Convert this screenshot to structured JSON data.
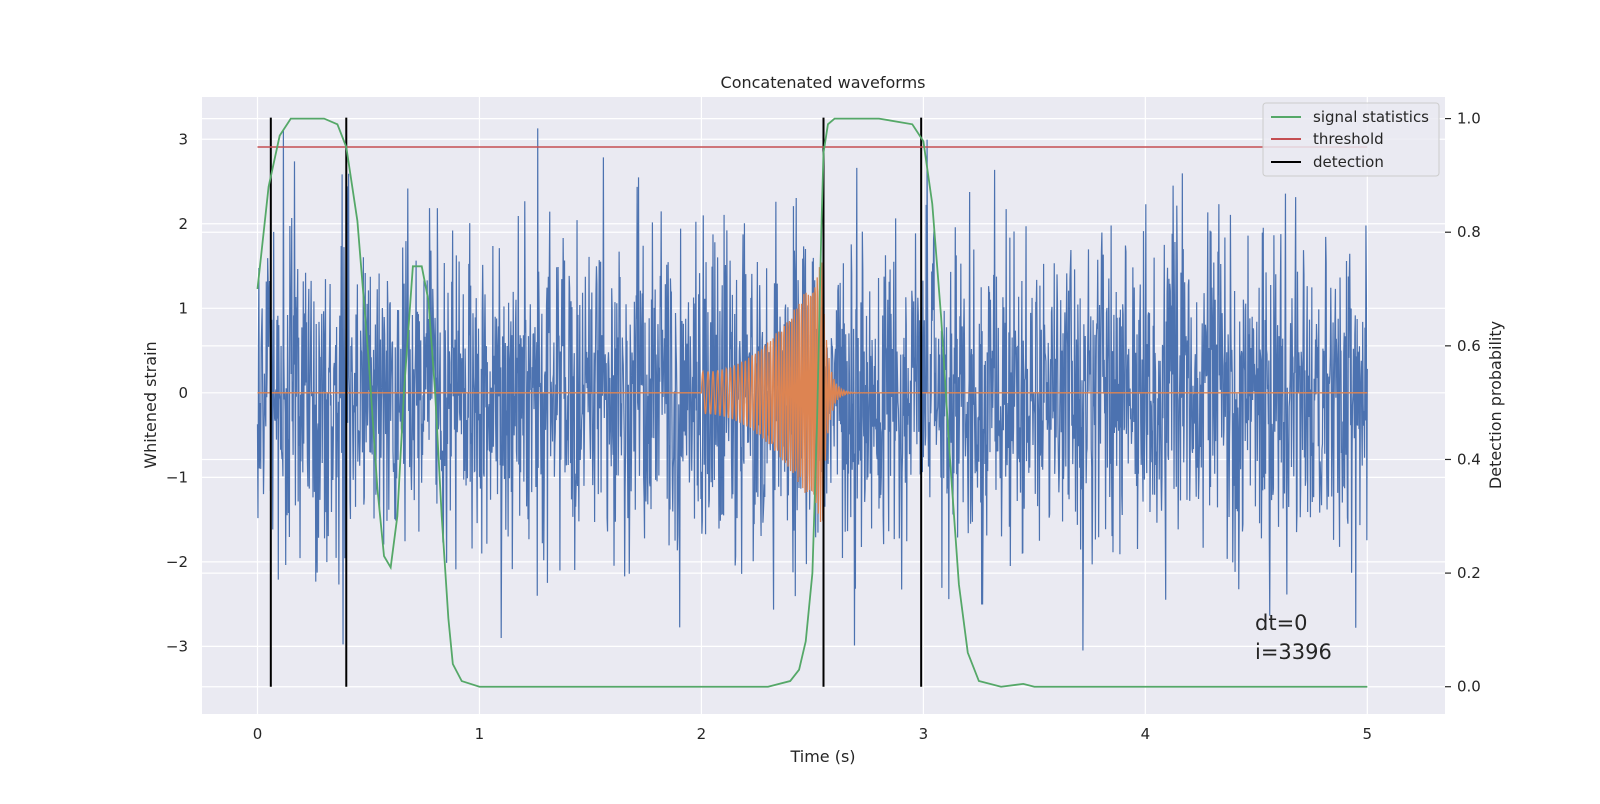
{
  "chart_data": {
    "type": "line",
    "title": "Concatenated waveforms",
    "xlabel": "Time (s)",
    "ylabel": "Whitened strain",
    "y2label": "Detection probability",
    "xlim": [
      -0.25,
      5.35
    ],
    "ylim": [
      -3.8,
      3.5
    ],
    "y2lim": [
      -0.048,
      1.038
    ],
    "xticks": [
      0,
      1,
      2,
      3,
      4,
      5
    ],
    "yticks": [
      -3,
      -2,
      -1,
      0,
      1,
      2,
      3
    ],
    "y2ticks": [
      0.0,
      0.2,
      0.4,
      0.6,
      0.8,
      1.0
    ],
    "grid": true,
    "legend_placement": "top-right",
    "annotations": [
      "dt=0",
      "i=3396"
    ],
    "series": [
      {
        "name": "signal statistics",
        "axis": "right",
        "color": "#55a868",
        "x": [
          0.0,
          0.05,
          0.1,
          0.15,
          0.2,
          0.3,
          0.36,
          0.4,
          0.45,
          0.5,
          0.54,
          0.57,
          0.6,
          0.63,
          0.66,
          0.7,
          0.74,
          0.77,
          0.8,
          0.83,
          0.86,
          0.88,
          0.92,
          1.0,
          1.5,
          2.0,
          2.3,
          2.4,
          2.44,
          2.47,
          2.5,
          2.52,
          2.54,
          2.55,
          2.57,
          2.6,
          2.65,
          2.8,
          2.95,
          3.0,
          3.04,
          3.08,
          3.12,
          3.16,
          3.2,
          3.25,
          3.35,
          3.45,
          3.5,
          3.6,
          4.0,
          4.5,
          5.0
        ],
        "values": [
          0.7,
          0.88,
          0.97,
          1.0,
          1.0,
          1.0,
          0.99,
          0.95,
          0.82,
          0.58,
          0.35,
          0.23,
          0.21,
          0.3,
          0.52,
          0.74,
          0.74,
          0.68,
          0.52,
          0.3,
          0.12,
          0.04,
          0.01,
          0.0,
          0.0,
          0.0,
          0.0,
          0.01,
          0.03,
          0.08,
          0.2,
          0.45,
          0.8,
          0.94,
          0.99,
          1.0,
          1.0,
          1.0,
          0.99,
          0.96,
          0.85,
          0.65,
          0.4,
          0.18,
          0.06,
          0.01,
          0.0,
          0.005,
          0.0,
          0.0,
          0.0,
          0.0,
          0.0
        ]
      },
      {
        "name": "threshold",
        "axis": "right",
        "color": "#c44e52",
        "x": [
          0,
          5
        ],
        "values": [
          0.95,
          0.95
        ]
      }
    ],
    "detections": {
      "name": "detection",
      "color": "#000000",
      "x": [
        0.06,
        0.4,
        2.55,
        2.99
      ]
    },
    "noise": {
      "color": "#4c72b0",
      "x_range": [
        0,
        5
      ],
      "amplitude": 1.0
    },
    "injected_signal": {
      "color": "#dd8452",
      "x_range": [
        0,
        5
      ],
      "chirp_start": 2.0,
      "merger": 2.55,
      "peak_amplitude": 1.6
    }
  },
  "legend": {
    "items": [
      {
        "label": "signal statistics",
        "color": "#55a868"
      },
      {
        "label": "threshold",
        "color": "#c44e52"
      },
      {
        "label": "detection",
        "color": "#000000"
      }
    ]
  },
  "colors": {
    "axes_background": "#eaeaf2",
    "grid": "#ffffff",
    "text": "#262626"
  }
}
